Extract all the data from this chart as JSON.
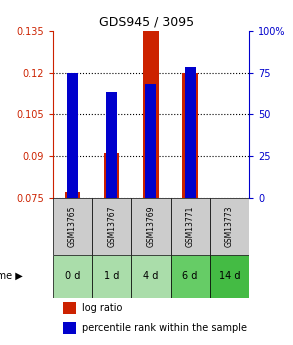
{
  "title": "GDS945 / 3095",
  "samples": [
    "GSM13765",
    "GSM13767",
    "GSM13769",
    "GSM13771",
    "GSM13773"
  ],
  "time_labels": [
    "0 d",
    "1 d",
    "4 d",
    "6 d",
    "14 d"
  ],
  "log_ratio_values": [
    0.077,
    0.091,
    0.135,
    0.12,
    0.075
  ],
  "log_ratio_base": 0.075,
  "percentile_values": [
    0.12,
    0.113,
    0.116,
    0.122,
    0.075
  ],
  "percentile_base": 0.075,
  "ylim_left": [
    0.075,
    0.135
  ],
  "ylim_right": [
    0,
    100
  ],
  "yticks_left": [
    0.075,
    0.09,
    0.105,
    0.12,
    0.135
  ],
  "yticks_right": [
    0,
    25,
    50,
    75,
    100
  ],
  "yticks_right_labels": [
    "0",
    "25",
    "50",
    "75",
    "100%"
  ],
  "bar_color_red": "#cc2200",
  "bar_color_blue": "#0000cc",
  "grid_color": "#000000",
  "sample_bg_color": "#cccccc",
  "time_bg_colors": [
    "#aaddaa",
    "#aaddaa",
    "#aaddaa",
    "#66cc66",
    "#44bb44"
  ],
  "bar_width": 0.4,
  "title_color": "#000000",
  "left_axis_color": "#cc2200",
  "right_axis_color": "#0000cc",
  "legend_red_label": "log ratio",
  "legend_blue_label": "percentile rank within the sample",
  "time_label": "time"
}
